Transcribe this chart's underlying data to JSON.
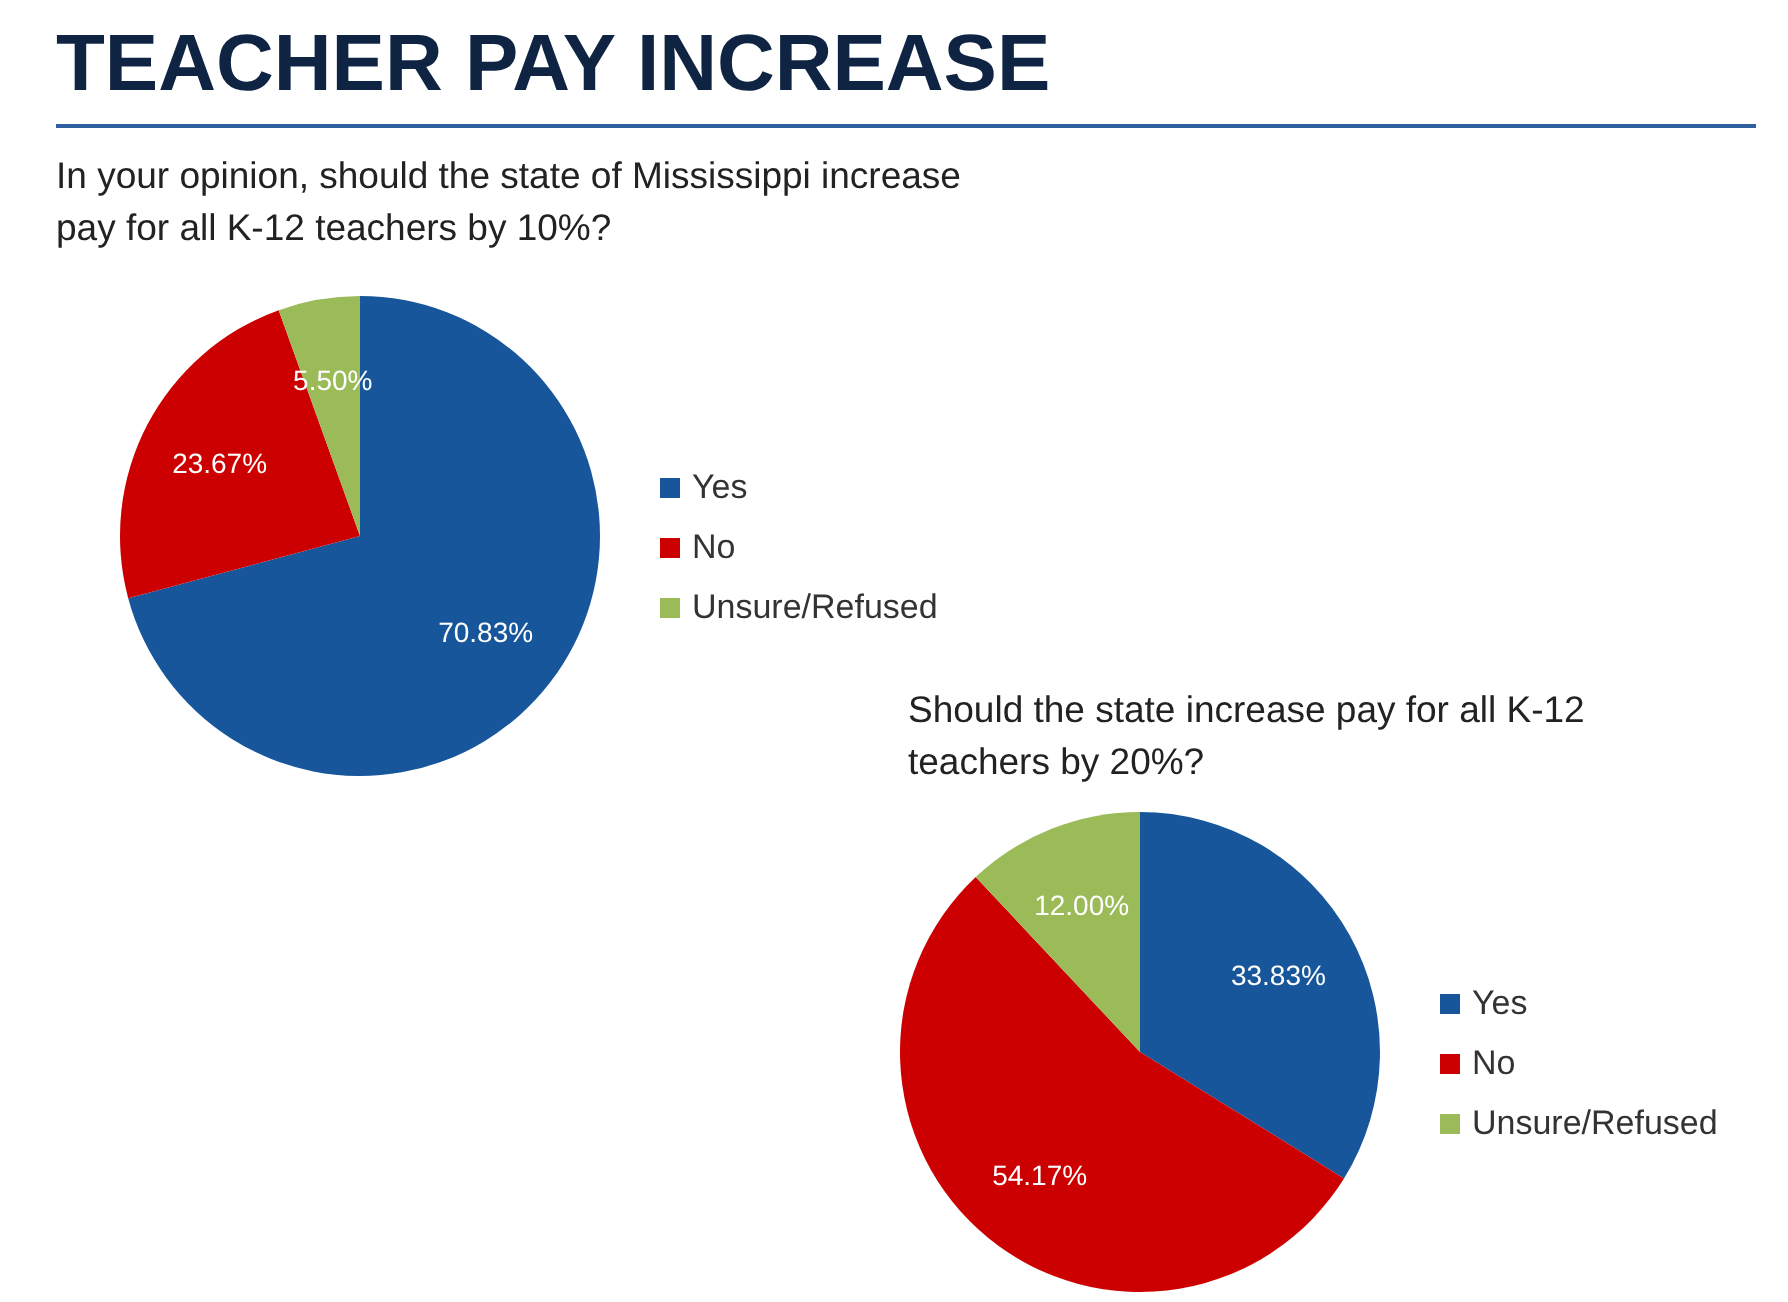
{
  "chart_data": [
    {
      "type": "pie",
      "title": "TEACHER PAY INCREASE",
      "subtitle": "In your opinion, should the state of Mississippi increase pay for all K-12 teachers by 10%?",
      "categories": [
        "Yes",
        "No",
        "Unsure/Refused"
      ],
      "values": [
        70.83,
        23.67,
        5.5
      ],
      "colors": [
        "#17569b",
        "#cc0000",
        "#9bbb59"
      ],
      "value_labels": [
        "70.83%",
        "23.67%",
        "5.50%"
      ],
      "legend": "right"
    },
    {
      "type": "pie",
      "subtitle": "Should the state increase pay for all K-12 teachers by 20%?",
      "categories": [
        "Yes",
        "No",
        "Unsure/Refused"
      ],
      "values": [
        33.83,
        54.17,
        12.0
      ],
      "colors": [
        "#17569b",
        "#cc0000",
        "#9bbb59"
      ],
      "value_labels": [
        "33.83%",
        "54.17%",
        "12.00%"
      ],
      "legend": "right"
    }
  ]
}
